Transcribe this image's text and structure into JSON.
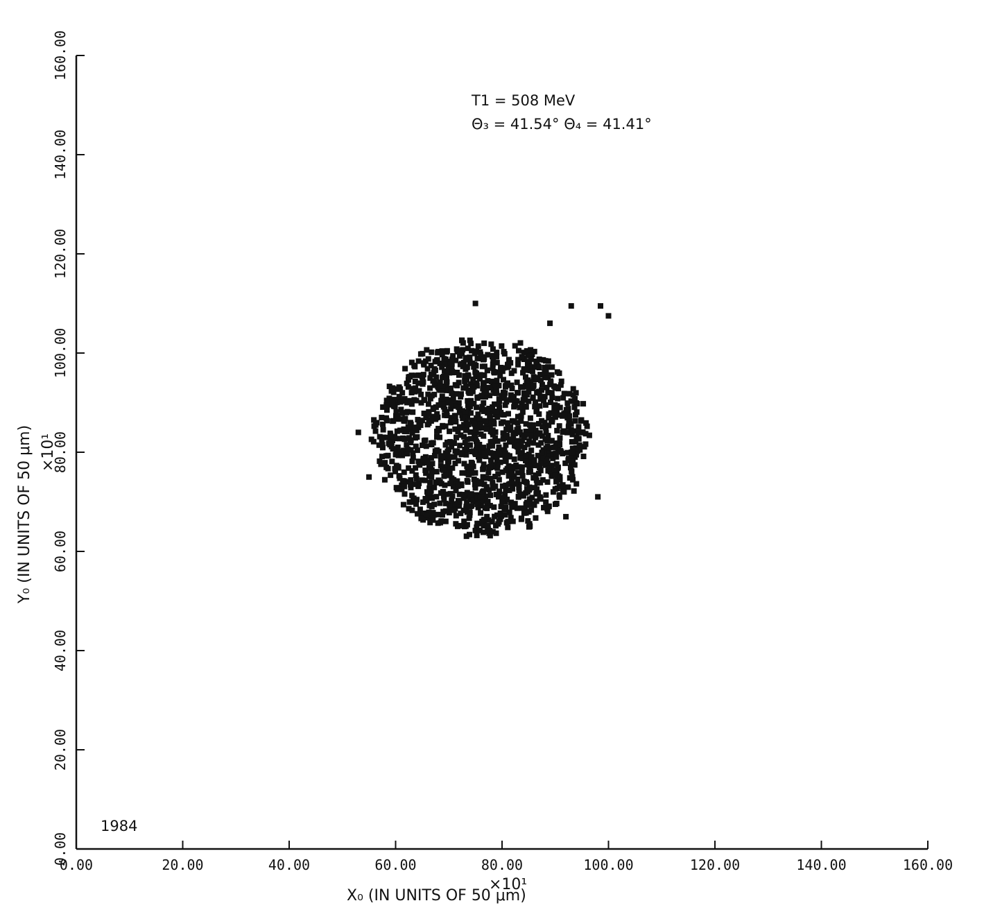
{
  "chart_data": {
    "type": "scatter",
    "xlim": [
      0,
      160
    ],
    "ylim": [
      0,
      160
    ],
    "x_ticks": [
      "0.00",
      "20.00",
      "40.00",
      "60.00",
      "80.00",
      "100.00",
      "120.00",
      "140.00",
      "160.00"
    ],
    "y_ticks": [
      "0.00",
      "20.00",
      "40.00",
      "60.00",
      "80.00",
      "100.00",
      "120.00",
      "140.00",
      "160.00"
    ],
    "xlabel": "X₀   (IN UNITS OF 50  μm)",
    "ylabel": "Y₀   (IN UNITS OF 50  μm)",
    "x_multiplier": "×10¹",
    "y_multiplier": "×10¹",
    "annotation_line1": "T1  =  508  MeV",
    "annotation_line2": "Θ₃ = 41.54°   Θ₄ = 41.41°",
    "corner_label": "1984",
    "grid": false,
    "cluster": {
      "center": [
        76,
        83
      ],
      "radius": 20,
      "approx_points": 1500
    },
    "outliers": [
      [
        75,
        110
      ],
      [
        93,
        109.5
      ],
      [
        98.5,
        109.5
      ],
      [
        100,
        107.5
      ],
      [
        89,
        106
      ],
      [
        53,
        84
      ],
      [
        55,
        75
      ],
      [
        98,
        71
      ],
      [
        92,
        67
      ]
    ],
    "marker_color": "#111111"
  }
}
